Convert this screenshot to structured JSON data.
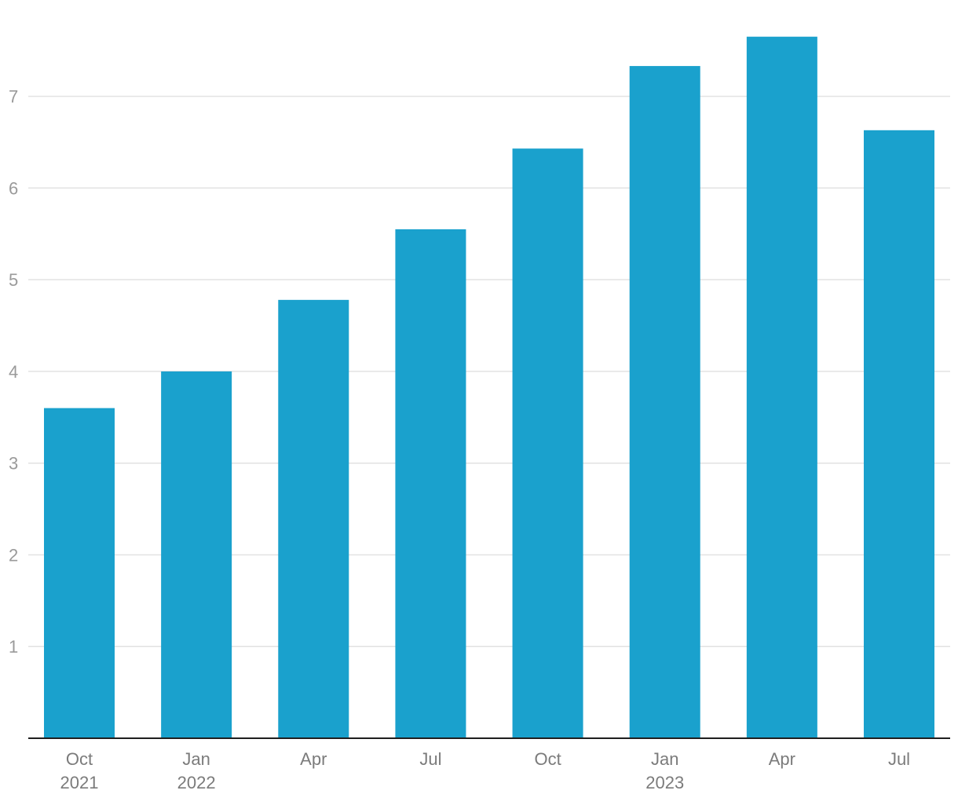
{
  "chart_data": {
    "type": "bar",
    "title": "",
    "xlabel": "",
    "ylabel": "",
    "categories": [
      {
        "month": "Oct",
        "year": "2021"
      },
      {
        "month": "Jan",
        "year": "2022"
      },
      {
        "month": "Apr",
        "year": ""
      },
      {
        "month": "Jul",
        "year": ""
      },
      {
        "month": "Oct",
        "year": ""
      },
      {
        "month": "Jan",
        "year": "2023"
      },
      {
        "month": "Apr",
        "year": ""
      },
      {
        "month": "Jul",
        "year": ""
      }
    ],
    "values": [
      3.6,
      4.0,
      4.78,
      5.55,
      6.43,
      7.33,
      7.65,
      6.63
    ],
    "ylim": [
      0,
      8.05
    ],
    "yticks": [
      1,
      2,
      3,
      4,
      5,
      6,
      7
    ],
    "grid": true,
    "legend": "none",
    "colors": {
      "bar": "#1aa1cd",
      "grid": "#e2e2e2",
      "axis": "#1f1f1f",
      "ytick_text": "#9a9a9a",
      "xtick_text": "#7b7b7b"
    }
  }
}
